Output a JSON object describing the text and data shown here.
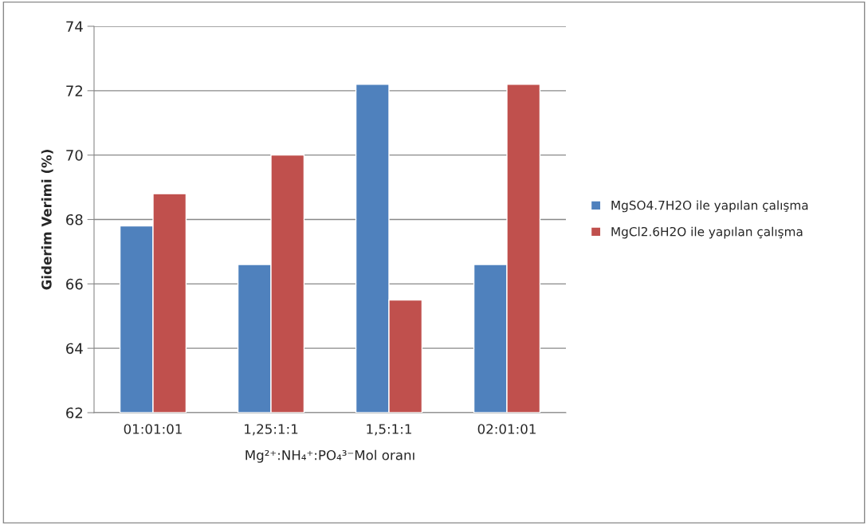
{
  "chart_data": {
    "type": "bar",
    "xlabel": "Mg²⁺:NH₄⁺:PO₄³⁻Mol oranı",
    "ylabel": "Giderim Verimi (%)",
    "categories": [
      "01:01:01",
      "1,25:1:1",
      "1,5:1:1",
      "02:01:01"
    ],
    "series": [
      {
        "name": "MgSO4.7H2O ile yapılan çalışma",
        "color": "#4f81bd",
        "values": [
          67.8,
          66.6,
          72.2,
          66.6
        ]
      },
      {
        "name": "MgCl2.6H2O ile yapılan çalışma",
        "color": "#c0504d",
        "values": [
          68.8,
          70.0,
          65.5,
          72.2
        ]
      }
    ],
    "ylim": [
      62,
      74
    ],
    "yticks": [
      62,
      64,
      66,
      68,
      70,
      72,
      74
    ],
    "grid": "y",
    "legend": "right"
  }
}
